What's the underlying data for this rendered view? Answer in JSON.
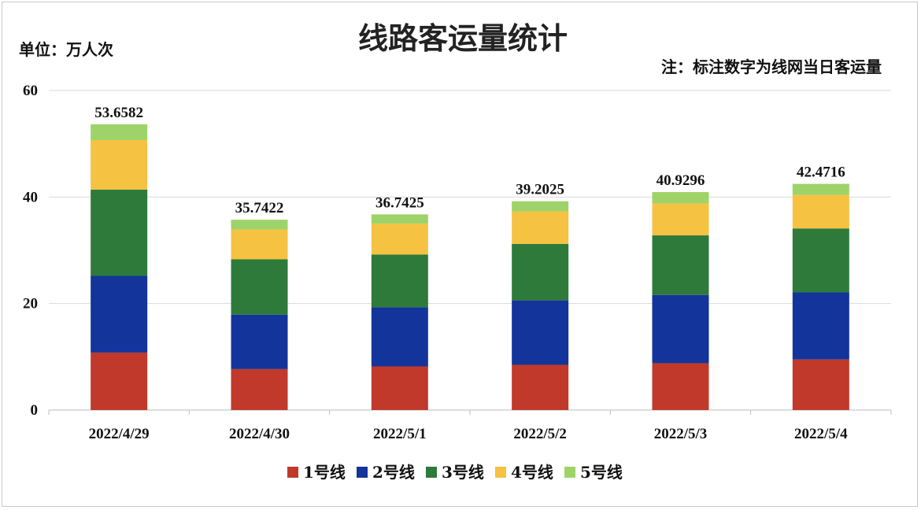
{
  "chart_data": {
    "type": "bar",
    "stacked": true,
    "title": "线路客运量统计",
    "unit_label": "单位：万人次",
    "note": "注：标注数字为线网当日客运量",
    "categories": [
      "2022/4/29",
      "2022/4/30",
      "2022/5/1",
      "2022/5/2",
      "2022/5/3",
      "2022/5/4"
    ],
    "ylim": [
      0,
      60
    ],
    "yticks": [
      "0",
      "20",
      "40",
      "60"
    ],
    "grid": true,
    "legend_position": "bottom",
    "series": [
      {
        "name": "1号线",
        "color": "#c0392b",
        "values": [
          10.8,
          7.7,
          8.2,
          8.5,
          8.8,
          9.5
        ]
      },
      {
        "name": "2号线",
        "color": "#13349a",
        "values": [
          14.4,
          10.2,
          11.1,
          12.1,
          12.8,
          12.6
        ]
      },
      {
        "name": "3号线",
        "color": "#2e7a3a",
        "values": [
          16.2,
          10.4,
          9.9,
          10.6,
          11.2,
          12.0
        ]
      },
      {
        "name": "4号线",
        "color": "#f5c242",
        "values": [
          9.3,
          5.6,
          5.8,
          6.1,
          6.0,
          6.3
        ]
      },
      {
        "name": "5号线",
        "color": "#9ed36a",
        "values": [
          2.9582,
          1.8422,
          1.7425,
          1.9025,
          2.1296,
          2.0716
        ]
      }
    ],
    "totals": [
      "53.6582",
      "35.7422",
      "36.7425",
      "39.2025",
      "40.9296",
      "42.4716"
    ]
  }
}
